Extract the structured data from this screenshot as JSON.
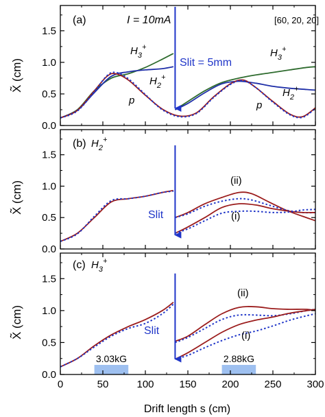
{
  "figure": {
    "current_label": "I = 10mA",
    "bracket_label": "[60, 20, 20]",
    "xlabel": "Drift length s (cm)"
  },
  "chart_data": [
    {
      "type": "line",
      "panel": "(a)",
      "ylabel": "X̃ (cm)",
      "xlim": [
        0,
        300
      ],
      "ylim": [
        0,
        1.9
      ],
      "xticks": [
        0,
        50,
        100,
        150,
        200,
        250,
        300
      ],
      "yticks": [
        0.0,
        0.5,
        1.0,
        1.5
      ],
      "annotations": {
        "current": "I = 10mA",
        "bracket": "[60, 20, 20]",
        "h3_left": "H3+",
        "h2_left": "H2+",
        "p_left": "p",
        "slit": "Slit = 5mm",
        "h3_right": "H3+",
        "h2_right": "H2+",
        "p_right": "p"
      },
      "slit_arrow": {
        "x": 135,
        "y_from": 1.88,
        "y_to": 0.25
      },
      "series": [
        {
          "species": "H3+",
          "style": "solid",
          "color": "#2e6b2e",
          "points": [
            [
              0,
              0.12
            ],
            [
              20,
              0.25
            ],
            [
              40,
              0.55
            ],
            [
              60,
              0.75
            ],
            [
              80,
              0.82
            ],
            [
              100,
              0.92
            ],
            [
              120,
              1.05
            ],
            [
              133,
              1.14
            ],
            [
              135,
              0.25
            ],
            [
              150,
              0.38
            ],
            [
              170,
              0.55
            ],
            [
              190,
              0.68
            ],
            [
              210,
              0.75
            ],
            [
              230,
              0.8
            ],
            [
              250,
              0.84
            ],
            [
              270,
              0.88
            ],
            [
              290,
              0.92
            ],
            [
              300,
              0.93
            ]
          ]
        },
        {
          "species": "H2+",
          "style": "solid",
          "color": "#1f2fa8",
          "points": [
            [
              0,
              0.12
            ],
            [
              20,
              0.24
            ],
            [
              40,
              0.52
            ],
            [
              60,
              0.78
            ],
            [
              80,
              0.85
            ],
            [
              100,
              0.88
            ],
            [
              120,
              0.9
            ],
            [
              133,
              0.93
            ],
            [
              135,
              0.25
            ],
            [
              150,
              0.35
            ],
            [
              170,
              0.52
            ],
            [
              190,
              0.66
            ],
            [
              210,
              0.7
            ],
            [
              230,
              0.67
            ],
            [
              250,
              0.62
            ],
            [
              270,
              0.59
            ],
            [
              290,
              0.57
            ],
            [
              300,
              0.56
            ]
          ]
        },
        {
          "species": "p (simulation)",
          "style": "solid",
          "color": "#9b1c1c",
          "points": [
            [
              0,
              0.12
            ],
            [
              20,
              0.24
            ],
            [
              40,
              0.55
            ],
            [
              55,
              0.78
            ],
            [
              65,
              0.82
            ],
            [
              80,
              0.72
            ],
            [
              100,
              0.48
            ],
            [
              120,
              0.26
            ],
            [
              140,
              0.15
            ],
            [
              160,
              0.2
            ],
            [
              180,
              0.45
            ],
            [
              200,
              0.66
            ],
            [
              215,
              0.72
            ],
            [
              230,
              0.6
            ],
            [
              250,
              0.38
            ],
            [
              270,
              0.18
            ],
            [
              285,
              0.14
            ],
            [
              300,
              0.28
            ]
          ]
        },
        {
          "species": "p (model)",
          "style": "dotted",
          "color": "#1f35c8",
          "points": [
            [
              0,
              0.12
            ],
            [
              20,
              0.23
            ],
            [
              40,
              0.54
            ],
            [
              55,
              0.79
            ],
            [
              65,
              0.84
            ],
            [
              80,
              0.74
            ],
            [
              100,
              0.49
            ],
            [
              120,
              0.25
            ],
            [
              140,
              0.14
            ],
            [
              160,
              0.19
            ],
            [
              180,
              0.44
            ],
            [
              200,
              0.65
            ],
            [
              215,
              0.71
            ],
            [
              230,
              0.6
            ],
            [
              250,
              0.37
            ],
            [
              270,
              0.17
            ],
            [
              285,
              0.13
            ],
            [
              300,
              0.27
            ]
          ]
        }
      ]
    },
    {
      "type": "line",
      "panel": "(b)",
      "ylabel": "X̃ (cm)",
      "xlim": [
        0,
        300
      ],
      "ylim": [
        0,
        1.9
      ],
      "xticks": [
        0,
        50,
        100,
        150,
        200,
        250,
        300
      ],
      "yticks": [
        0.0,
        0.5,
        1.0,
        1.5
      ],
      "annotations": {
        "species": "H2+",
        "slit": "Slit",
        "upper": "(ii)",
        "lower": "(i)"
      },
      "slit_arrow": {
        "x": 135,
        "y_from": 1.65,
        "y_to": 0.2
      },
      "series": [
        {
          "name": "before slit (simulation)",
          "style": "solid",
          "color": "#9b1c1c",
          "points": [
            [
              0,
              0.12
            ],
            [
              20,
              0.25
            ],
            [
              40,
              0.5
            ],
            [
              60,
              0.75
            ],
            [
              80,
              0.8
            ],
            [
              100,
              0.84
            ],
            [
              120,
              0.9
            ],
            [
              133,
              0.93
            ]
          ]
        },
        {
          "name": "before slit (model)",
          "style": "dotted",
          "color": "#1f35c8",
          "points": [
            [
              0,
              0.12
            ],
            [
              20,
              0.24
            ],
            [
              40,
              0.52
            ],
            [
              60,
              0.77
            ],
            [
              80,
              0.8
            ],
            [
              100,
              0.84
            ],
            [
              120,
              0.9
            ],
            [
              133,
              0.92
            ]
          ]
        },
        {
          "name": "(ii) simulation",
          "style": "solid",
          "color": "#9b1c1c",
          "points": [
            [
              135,
              0.5
            ],
            [
              150,
              0.58
            ],
            [
              170,
              0.72
            ],
            [
              190,
              0.82
            ],
            [
              210,
              0.9
            ],
            [
              225,
              0.88
            ],
            [
              245,
              0.75
            ],
            [
              265,
              0.62
            ],
            [
              285,
              0.52
            ],
            [
              300,
              0.45
            ]
          ]
        },
        {
          "name": "(ii) model",
          "style": "dotted",
          "color": "#1f35c8",
          "points": [
            [
              135,
              0.5
            ],
            [
              150,
              0.56
            ],
            [
              170,
              0.68
            ],
            [
              190,
              0.76
            ],
            [
              210,
              0.8
            ],
            [
              225,
              0.78
            ],
            [
              245,
              0.7
            ],
            [
              265,
              0.62
            ],
            [
              285,
              0.58
            ],
            [
              300,
              0.58
            ]
          ]
        },
        {
          "name": "(i) simulation",
          "style": "solid",
          "color": "#9b1c1c",
          "points": [
            [
              135,
              0.25
            ],
            [
              150,
              0.35
            ],
            [
              170,
              0.5
            ],
            [
              190,
              0.66
            ],
            [
              210,
              0.72
            ],
            [
              230,
              0.7
            ],
            [
              250,
              0.64
            ],
            [
              270,
              0.6
            ],
            [
              285,
              0.58
            ],
            [
              300,
              0.58
            ]
          ]
        },
        {
          "name": "(i) model",
          "style": "dotted",
          "color": "#1f35c8",
          "points": [
            [
              135,
              0.25
            ],
            [
              150,
              0.32
            ],
            [
              170,
              0.45
            ],
            [
              190,
              0.57
            ],
            [
              210,
              0.6
            ],
            [
              230,
              0.6
            ],
            [
              250,
              0.58
            ],
            [
              270,
              0.59
            ],
            [
              285,
              0.62
            ],
            [
              300,
              0.63
            ]
          ]
        }
      ]
    },
    {
      "type": "line",
      "panel": "(c)",
      "ylabel": "X̃ (cm)",
      "xlabel": "Drift length s (cm)",
      "xlim": [
        0,
        300
      ],
      "ylim": [
        0,
        1.9
      ],
      "xticks": [
        0,
        50,
        100,
        150,
        200,
        250,
        300
      ],
      "yticks": [
        0.0,
        0.5,
        1.0,
        1.5
      ],
      "annotations": {
        "species": "H3+",
        "slit": "Slit",
        "upper": "(ii)",
        "lower": "(i)"
      },
      "slit_arrow": {
        "x": 135,
        "y_from": 1.58,
        "y_to": 0.22
      },
      "magnets": [
        {
          "label": "3.03kG",
          "x_start": 40,
          "x_end": 80,
          "height": 0.15
        },
        {
          "label": "2.88kG",
          "x_start": 190,
          "x_end": 230,
          "height": 0.15
        }
      ],
      "series": [
        {
          "name": "before slit (simulation)",
          "style": "solid",
          "color": "#9b1c1c",
          "points": [
            [
              0,
              0.12
            ],
            [
              20,
              0.25
            ],
            [
              40,
              0.45
            ],
            [
              60,
              0.62
            ],
            [
              80,
              0.75
            ],
            [
              100,
              0.86
            ],
            [
              120,
              1.0
            ],
            [
              133,
              1.13
            ]
          ]
        },
        {
          "name": "before slit (model)",
          "style": "dotted",
          "color": "#1f35c8",
          "points": [
            [
              0,
              0.12
            ],
            [
              20,
              0.25
            ],
            [
              40,
              0.43
            ],
            [
              60,
              0.6
            ],
            [
              80,
              0.72
            ],
            [
              100,
              0.8
            ],
            [
              120,
              0.95
            ],
            [
              133,
              1.1
            ]
          ]
        },
        {
          "name": "(ii) simulation",
          "style": "solid",
          "color": "#9b1c1c",
          "points": [
            [
              135,
              0.52
            ],
            [
              150,
              0.6
            ],
            [
              170,
              0.78
            ],
            [
              190,
              0.95
            ],
            [
              210,
              1.05
            ],
            [
              230,
              1.06
            ],
            [
              250,
              1.03
            ],
            [
              270,
              1.02
            ],
            [
              290,
              1.02
            ],
            [
              300,
              1.0
            ]
          ]
        },
        {
          "name": "(ii) model",
          "style": "dotted",
          "color": "#1f35c8",
          "points": [
            [
              135,
              0.5
            ],
            [
              150,
              0.58
            ],
            [
              170,
              0.72
            ],
            [
              190,
              0.86
            ],
            [
              210,
              0.93
            ],
            [
              230,
              0.93
            ],
            [
              250,
              0.92
            ],
            [
              270,
              0.95
            ],
            [
              290,
              1.0
            ],
            [
              300,
              1.02
            ]
          ]
        },
        {
          "name": "(i) simulation",
          "style": "solid",
          "color": "#9b1c1c",
          "points": [
            [
              135,
              0.24
            ],
            [
              150,
              0.34
            ],
            [
              170,
              0.5
            ],
            [
              190,
              0.66
            ],
            [
              210,
              0.78
            ],
            [
              230,
              0.85
            ],
            [
              250,
              0.9
            ],
            [
              270,
              0.96
            ],
            [
              290,
              1.0
            ],
            [
              300,
              1.02
            ]
          ]
        },
        {
          "name": "(i) model",
          "style": "dotted",
          "color": "#1f35c8",
          "points": [
            [
              135,
              0.24
            ],
            [
              150,
              0.3
            ],
            [
              170,
              0.42
            ],
            [
              190,
              0.53
            ],
            [
              210,
              0.62
            ],
            [
              230,
              0.68
            ],
            [
              250,
              0.76
            ],
            [
              270,
              0.85
            ],
            [
              290,
              0.92
            ],
            [
              300,
              0.95
            ]
          ]
        }
      ]
    }
  ]
}
